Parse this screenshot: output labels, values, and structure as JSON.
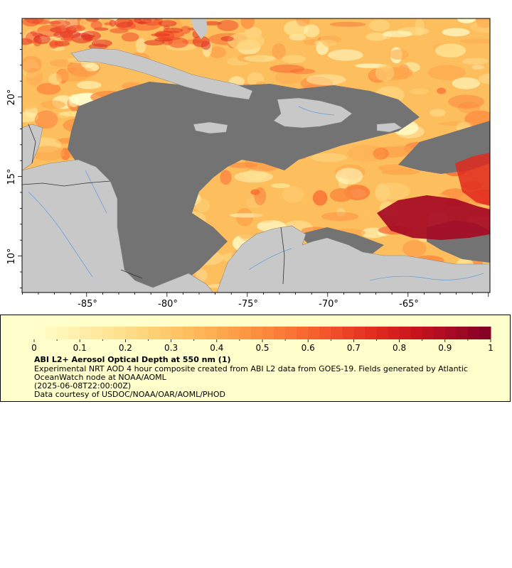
{
  "map": {
    "lon_ticks": [
      "-85°",
      "-80°",
      "-75°",
      "-70°",
      "-65°"
    ],
    "lat_ticks": [
      "20°",
      "15°",
      "10°"
    ],
    "colors": {
      "land": "#c8c8c8",
      "ocean_nodata": "#737373",
      "rivers": "#6aa0d8",
      "borders": "#8a8a8a"
    }
  },
  "legend": {
    "tick_labels": [
      "0",
      "0.1",
      "0.2",
      "0.3",
      "0.4",
      "0.5",
      "0.6",
      "0.7",
      "0.8",
      "0.9",
      "1"
    ],
    "title": "ABI L2+ Aerosol Optical Depth at 550 nm (1)",
    "description": "Experimental NRT AOD 4 hour composite created from ABI L2 data from GOES-19. Fields generated by Atlantic OceanWatch node at NOAA/AOML",
    "date": "(2025-06-08T22:00:00Z)",
    "credit": "Data courtesy of USDOC/NOAA/OAR/AOML/PHOD",
    "colormap": [
      "#ffffcc",
      "#fff2b0",
      "#ffe595",
      "#fed37a",
      "#febf5f",
      "#fda64b",
      "#fc8a3d",
      "#f96c32",
      "#ef4a28",
      "#e02a1f",
      "#c8131d",
      "#a60a24",
      "#800026"
    ]
  }
}
